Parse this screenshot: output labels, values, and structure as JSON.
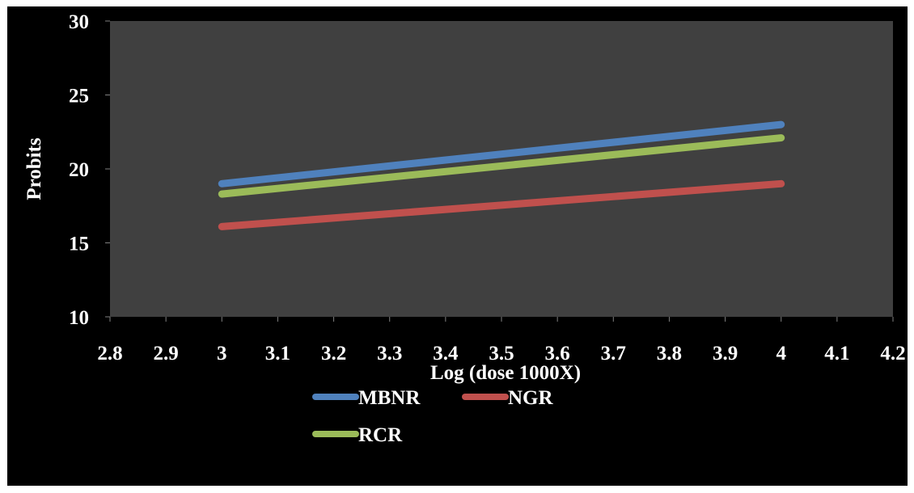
{
  "chart_data": {
    "type": "line",
    "title": "",
    "xlabel": "Log (dose 1000X)",
    "ylabel": "Probits",
    "xlim": [
      2.8,
      4.2
    ],
    "ylim": [
      10,
      30
    ],
    "x_ticks": [
      2.8,
      2.9,
      3,
      3.1,
      3.2,
      3.3,
      3.4,
      3.5,
      3.6,
      3.7,
      3.8,
      3.9,
      4,
      4.1,
      4.2
    ],
    "x_tick_labels": [
      "2.8",
      "2.9",
      "3",
      "3.1",
      "3.2",
      "3.3",
      "3.4",
      "3.5",
      "3.6",
      "3.7",
      "3.8",
      "3.9",
      "4",
      "4.1",
      "4.2"
    ],
    "y_ticks": [
      10,
      15,
      20,
      25,
      30
    ],
    "y_tick_labels": [
      "10",
      "15",
      "20",
      "25",
      "30"
    ],
    "grid": false,
    "legend_position": "bottom",
    "colors": {
      "frame_background": "#000000",
      "plot_background": "#404040",
      "text": "#ffffff"
    },
    "series": [
      {
        "name": "MBNR",
        "color": "#4f81bd",
        "x": [
          3,
          4
        ],
        "y": [
          19.0,
          23.0
        ]
      },
      {
        "name": "NGR",
        "color": "#c0504d",
        "x": [
          3,
          4
        ],
        "y": [
          16.1,
          19.0
        ]
      },
      {
        "name": "RCR",
        "color": "#9bbb59",
        "x": [
          3,
          4
        ],
        "y": [
          18.3,
          22.1
        ]
      }
    ]
  }
}
